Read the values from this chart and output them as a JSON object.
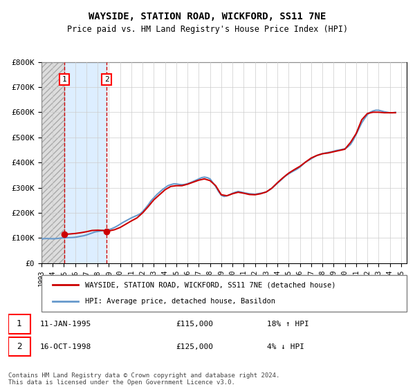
{
  "title": "WAYSIDE, STATION ROAD, WICKFORD, SS11 7NE",
  "subtitle": "Price paid vs. HM Land Registry's House Price Index (HPI)",
  "legend_line1": "WAYSIDE, STATION ROAD, WICKFORD, SS11 7NE (detached house)",
  "legend_line2": "HPI: Average price, detached house, Basildon",
  "footer": "Contains HM Land Registry data © Crown copyright and database right 2024.\nThis data is licensed under the Open Government Licence v3.0.",
  "transaction1_label": "1",
  "transaction1_date": "11-JAN-1995",
  "transaction1_price": "£115,000",
  "transaction1_hpi": "18% ↑ HPI",
  "transaction2_label": "2",
  "transaction2_date": "16-OCT-1998",
  "transaction2_price": "£125,000",
  "transaction2_hpi": "4% ↓ HPI",
  "purchase1_x": 1995.03,
  "purchase1_y": 115000,
  "purchase2_x": 1998.79,
  "purchase2_y": 125000,
  "vline1_x": 1995.03,
  "vline2_x": 1998.79,
  "shade1_xmin": 1993.0,
  "shade1_xmax": 1995.03,
  "shade2_xmin": 1995.03,
  "shade2_xmax": 1998.79,
  "hpi_color": "#6699cc",
  "price_color": "#cc0000",
  "shade1_color": "#dddddd",
  "shade2_color": "#ddeeff",
  "vline_color": "#cc0000",
  "ylim_min": 0,
  "ylim_max": 800000,
  "xlim_min": 1993.0,
  "xlim_max": 2025.5,
  "yticks": [
    0,
    100000,
    200000,
    300000,
    400000,
    500000,
    600000,
    700000,
    800000
  ],
  "ytick_labels": [
    "£0",
    "£100K",
    "£200K",
    "£300K",
    "£400K",
    "£500K",
    "£600K",
    "£700K",
    "£800K"
  ],
  "xtick_years": [
    1993,
    1994,
    1995,
    1996,
    1997,
    1998,
    1999,
    2000,
    2001,
    2002,
    2003,
    2004,
    2005,
    2006,
    2007,
    2008,
    2009,
    2010,
    2011,
    2012,
    2013,
    2014,
    2015,
    2016,
    2017,
    2018,
    2019,
    2020,
    2021,
    2022,
    2023,
    2024,
    2025
  ],
  "hpi_data_x": [
    1993.0,
    1993.25,
    1993.5,
    1993.75,
    1994.0,
    1994.25,
    1994.5,
    1994.75,
    1995.0,
    1995.25,
    1995.5,
    1995.75,
    1996.0,
    1996.25,
    1996.5,
    1996.75,
    1997.0,
    1997.25,
    1997.5,
    1997.75,
    1998.0,
    1998.25,
    1998.5,
    1998.75,
    1999.0,
    1999.25,
    1999.5,
    1999.75,
    2000.0,
    2000.25,
    2000.5,
    2000.75,
    2001.0,
    2001.25,
    2001.5,
    2001.75,
    2002.0,
    2002.25,
    2002.5,
    2002.75,
    2003.0,
    2003.25,
    2003.5,
    2003.75,
    2004.0,
    2004.25,
    2004.5,
    2004.75,
    2005.0,
    2005.25,
    2005.5,
    2005.75,
    2006.0,
    2006.25,
    2006.5,
    2006.75,
    2007.0,
    2007.25,
    2007.5,
    2007.75,
    2008.0,
    2008.25,
    2008.5,
    2008.75,
    2009.0,
    2009.25,
    2009.5,
    2009.75,
    2010.0,
    2010.25,
    2010.5,
    2010.75,
    2011.0,
    2011.25,
    2011.5,
    2011.75,
    2012.0,
    2012.25,
    2012.5,
    2012.75,
    2013.0,
    2013.25,
    2013.5,
    2013.75,
    2014.0,
    2014.25,
    2014.5,
    2014.75,
    2015.0,
    2015.25,
    2015.5,
    2015.75,
    2016.0,
    2016.25,
    2016.5,
    2016.75,
    2017.0,
    2017.25,
    2017.5,
    2017.75,
    2018.0,
    2018.25,
    2018.5,
    2018.75,
    2019.0,
    2019.25,
    2019.5,
    2019.75,
    2020.0,
    2020.25,
    2020.5,
    2020.75,
    2021.0,
    2021.25,
    2021.5,
    2021.75,
    2022.0,
    2022.25,
    2022.5,
    2022.75,
    2023.0,
    2023.25,
    2023.5,
    2023.75,
    2024.0,
    2024.25,
    2024.5
  ],
  "hpi_data_y": [
    97000,
    97500,
    98000,
    97500,
    97000,
    97500,
    98500,
    100000,
    100500,
    101000,
    101500,
    102000,
    103000,
    105000,
    107000,
    109000,
    112000,
    116000,
    120000,
    124000,
    126000,
    128000,
    130000,
    131000,
    133000,
    137000,
    142000,
    148000,
    155000,
    162000,
    168000,
    174000,
    180000,
    185000,
    190000,
    195000,
    205000,
    218000,
    232000,
    248000,
    260000,
    272000,
    282000,
    292000,
    300000,
    308000,
    312000,
    315000,
    315000,
    313000,
    312000,
    313000,
    316000,
    320000,
    325000,
    330000,
    335000,
    340000,
    342000,
    340000,
    335000,
    320000,
    305000,
    285000,
    270000,
    265000,
    268000,
    272000,
    278000,
    282000,
    285000,
    283000,
    280000,
    278000,
    276000,
    275000,
    274000,
    276000,
    278000,
    280000,
    283000,
    290000,
    298000,
    308000,
    318000,
    328000,
    338000,
    348000,
    355000,
    362000,
    368000,
    374000,
    382000,
    392000,
    402000,
    408000,
    415000,
    422000,
    428000,
    432000,
    435000,
    438000,
    440000,
    442000,
    445000,
    448000,
    450000,
    452000,
    455000,
    462000,
    472000,
    490000,
    512000,
    535000,
    558000,
    575000,
    590000,
    600000,
    605000,
    608000,
    608000,
    605000,
    602000,
    600000,
    598000,
    598000,
    600000
  ],
  "price_data_x": [
    1995.03,
    1995.5,
    1996.0,
    1996.5,
    1997.0,
    1997.5,
    1998.0,
    1998.5,
    1998.79,
    1999.0,
    1999.5,
    2000.0,
    2000.5,
    2001.0,
    2001.5,
    2002.0,
    2002.5,
    2003.0,
    2003.5,
    2004.0,
    2004.5,
    2005.0,
    2005.5,
    2006.0,
    2006.5,
    2007.0,
    2007.5,
    2008.0,
    2008.5,
    2009.0,
    2009.5,
    2010.0,
    2010.5,
    2011.0,
    2011.5,
    2012.0,
    2012.5,
    2013.0,
    2013.5,
    2014.0,
    2014.5,
    2015.0,
    2015.5,
    2016.0,
    2016.5,
    2017.0,
    2017.5,
    2018.0,
    2018.5,
    2019.0,
    2019.5,
    2020.0,
    2020.5,
    2021.0,
    2021.5,
    2022.0,
    2022.5,
    2023.0,
    2023.5,
    2024.0,
    2024.5
  ],
  "price_data_y": [
    115000,
    116000,
    118000,
    121000,
    125000,
    130000,
    131000,
    130000,
    125000,
    128000,
    133000,
    142000,
    155000,
    168000,
    180000,
    200000,
    225000,
    252000,
    272000,
    292000,
    305000,
    308000,
    308000,
    314000,
    322000,
    330000,
    335000,
    328000,
    308000,
    272000,
    268000,
    276000,
    282000,
    278000,
    273000,
    272000,
    276000,
    283000,
    298000,
    320000,
    340000,
    358000,
    372000,
    385000,
    402000,
    418000,
    428000,
    435000,
    438000,
    443000,
    448000,
    453000,
    480000,
    515000,
    570000,
    595000,
    600000,
    600000,
    598000,
    598000,
    598000
  ]
}
